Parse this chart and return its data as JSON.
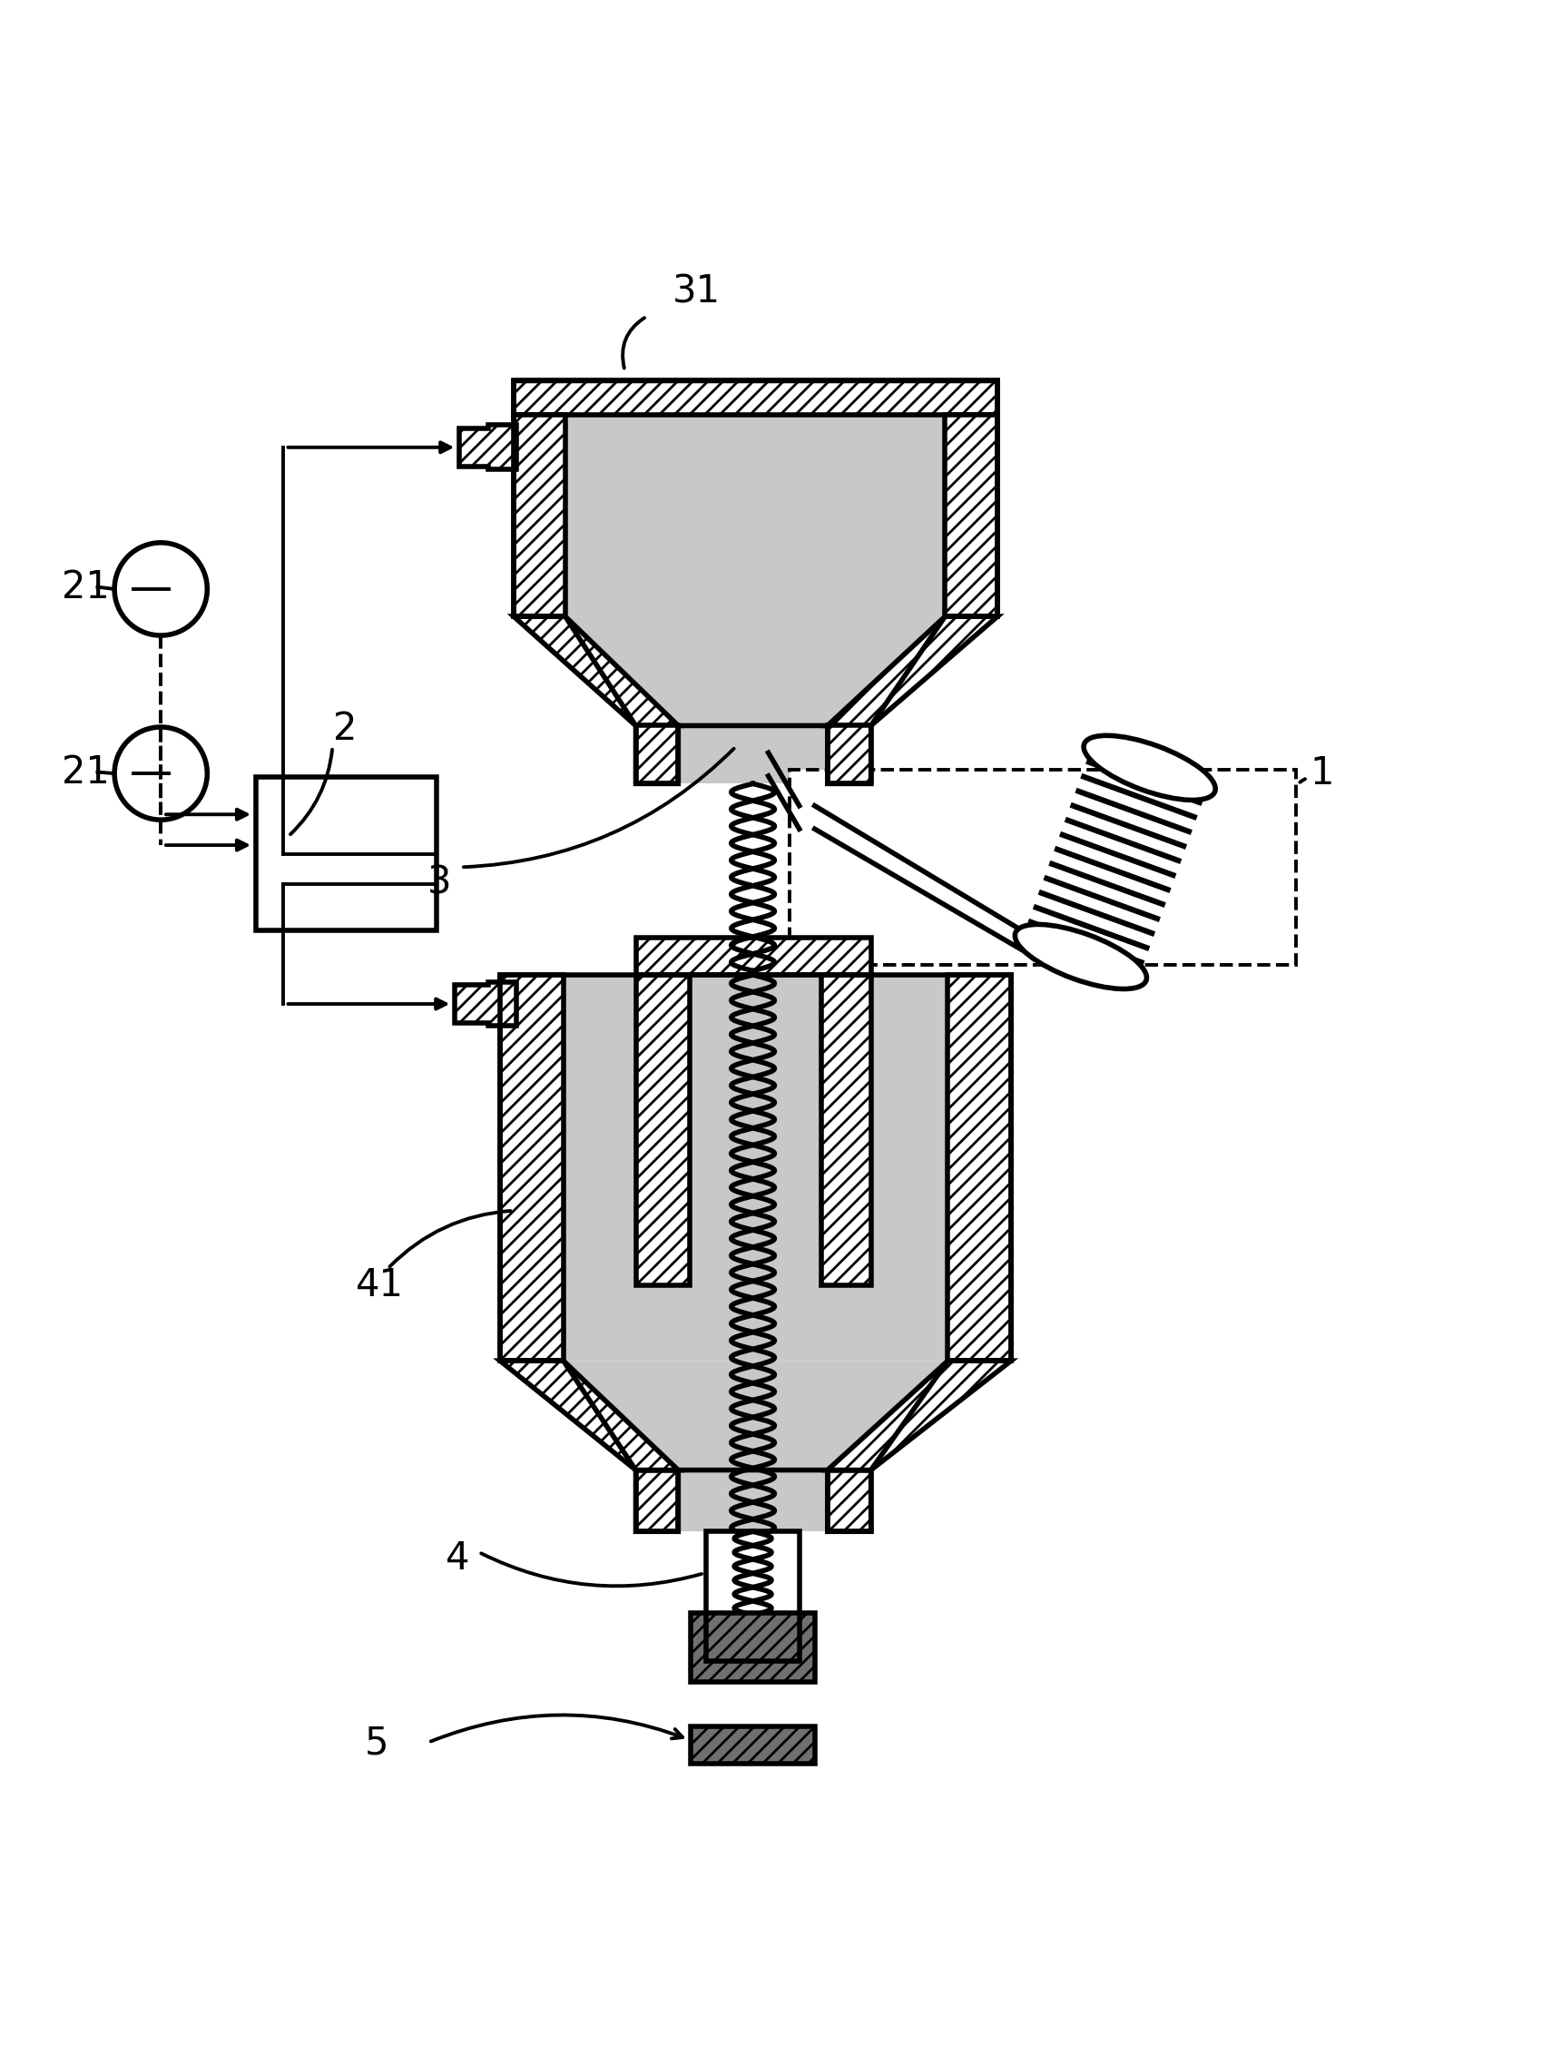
{
  "bg_color": "#ffffff",
  "lc": "#000000",
  "gray_fill": "#c8c8c8",
  "dark_fill": "#707070",
  "label_31": "31",
  "label_2": "2",
  "label_21a": "21",
  "label_21b": "21",
  "label_1": "1",
  "label_3": "3",
  "label_41": "41",
  "label_4": "4",
  "label_5": "5",
  "fw": 8.545,
  "fh": 11.32,
  "dpi": 200,
  "lw": 2.0,
  "lw_thin": 1.4
}
